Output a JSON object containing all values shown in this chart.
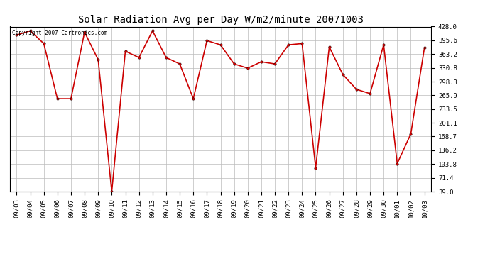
{
  "title": "Solar Radiation Avg per Day W/m2/minute 20071003",
  "copyright_text": "Copyright 2007 Cartronics.com",
  "dates": [
    "09/03",
    "09/04",
    "09/05",
    "09/06",
    "09/07",
    "09/08",
    "09/09",
    "09/10",
    "09/11",
    "09/12",
    "09/13",
    "09/14",
    "09/15",
    "09/16",
    "09/17",
    "09/18",
    "09/19",
    "09/20",
    "09/21",
    "09/22",
    "09/23",
    "09/24",
    "09/25",
    "09/26",
    "09/27",
    "09/28",
    "09/29",
    "09/30",
    "10/01",
    "10/02",
    "10/03"
  ],
  "values": [
    408.0,
    418.0,
    388.0,
    258.0,
    258.0,
    415.0,
    350.0,
    39.0,
    370.0,
    355.0,
    418.0,
    355.0,
    340.0,
    258.0,
    395.0,
    385.0,
    340.0,
    330.0,
    345.0,
    340.0,
    385.0,
    388.0,
    95.0,
    380.0,
    315.0,
    280.0,
    270.0,
    385.0,
    105.0,
    175.0,
    378.0
  ],
  "line_color": "#cc0000",
  "marker": "o",
  "markersize": 2.5,
  "linewidth": 1.2,
  "ylim": [
    39.0,
    428.0
  ],
  "yticks": [
    39.0,
    71.4,
    103.8,
    136.2,
    168.7,
    201.1,
    233.5,
    265.9,
    298.3,
    330.8,
    363.2,
    395.6,
    428.0
  ],
  "background_color": "#ffffff",
  "grid_color": "#bbbbbb",
  "title_fontsize": 10,
  "tick_fontsize": 6.5,
  "copyright_fontsize": 5.5
}
